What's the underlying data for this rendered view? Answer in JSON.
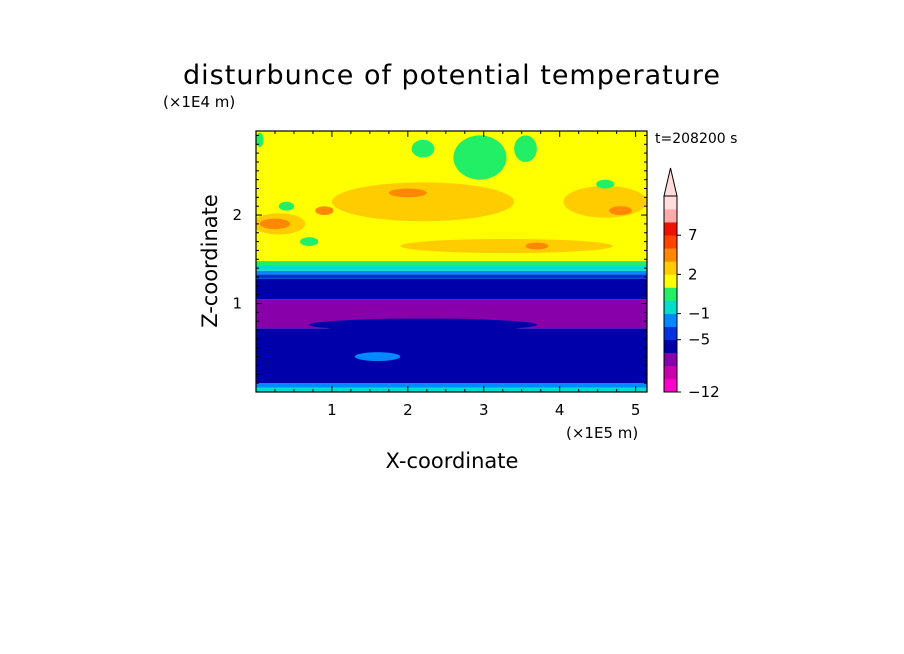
{
  "chart_data": {
    "type": "heatmap",
    "title": "disturbunce of potential temperature",
    "time_label": "t=208200 s",
    "xlabel": "X-coordinate",
    "ylabel": "Z-coordinate",
    "x_unit": "(×1E5 m)",
    "y_unit": "(×1E4 m)",
    "xlim": [
      0,
      5.15
    ],
    "ylim": [
      0,
      2.95
    ],
    "x_ticks": [
      "1",
      "2",
      "3",
      "4",
      "5"
    ],
    "y_ticks": [
      "1",
      "2"
    ],
    "colorbar": {
      "labels": [
        "7",
        "2",
        "−1",
        "−5",
        "−12"
      ],
      "colors": [
        "#ff00cc",
        "#cc00aa",
        "#8800aa",
        "#0000aa",
        "#0033dd",
        "#0088ff",
        "#00ddcc",
        "#22ee66",
        "#ffff00",
        "#ffcc00",
        "#ff8800",
        "#ff4400",
        "#ee1100",
        "#ffaaaa",
        "#ffdddd"
      ],
      "extend": "max"
    },
    "bands": [
      {
        "z0": 0.0,
        "z1": 0.05,
        "color": "#00ddcc"
      },
      {
        "z0": 0.05,
        "z1": 0.1,
        "color": "#0088ff"
      },
      {
        "z0": 0.1,
        "z1": 0.72,
        "color": "#0000aa"
      },
      {
        "z0": 0.72,
        "z1": 1.05,
        "color": "#8800aa"
      },
      {
        "z0": 1.05,
        "z1": 1.28,
        "color": "#0000aa"
      },
      {
        "z0": 1.28,
        "z1": 1.33,
        "color": "#0033dd"
      },
      {
        "z0": 1.33,
        "z1": 1.37,
        "color": "#0088ff"
      },
      {
        "z0": 1.37,
        "z1": 1.43,
        "color": "#00ddcc"
      },
      {
        "z0": 1.43,
        "z1": 1.48,
        "color": "#22ee66"
      },
      {
        "z0": 1.48,
        "z1": 2.95,
        "color": "#ffff00"
      }
    ],
    "patches": [
      {
        "cx": 0.3,
        "cz": 1.9,
        "rx": 0.35,
        "rz": 0.12,
        "color": "#ffcc00"
      },
      {
        "cx": 2.2,
        "cz": 2.15,
        "rx": 1.2,
        "rz": 0.22,
        "color": "#ffcc00"
      },
      {
        "cx": 4.6,
        "cz": 2.15,
        "rx": 0.55,
        "rz": 0.18,
        "color": "#ffcc00"
      },
      {
        "cx": 3.3,
        "cz": 1.65,
        "rx": 1.4,
        "rz": 0.08,
        "color": "#ffcc00"
      },
      {
        "cx": 0.25,
        "cz": 1.9,
        "rx": 0.2,
        "rz": 0.06,
        "color": "#ff8800"
      },
      {
        "cx": 0.9,
        "cz": 2.05,
        "rx": 0.12,
        "rz": 0.05,
        "color": "#ff8800"
      },
      {
        "cx": 2.0,
        "cz": 2.25,
        "rx": 0.25,
        "rz": 0.05,
        "color": "#ff8800"
      },
      {
        "cx": 3.7,
        "cz": 1.65,
        "rx": 0.15,
        "rz": 0.04,
        "color": "#ff8800"
      },
      {
        "cx": 4.8,
        "cz": 2.05,
        "rx": 0.15,
        "rz": 0.05,
        "color": "#ff8800"
      },
      {
        "cx": 0.05,
        "cz": 2.85,
        "rx": 0.05,
        "rz": 0.08,
        "color": "#22ee66"
      },
      {
        "cx": 0.4,
        "cz": 2.1,
        "rx": 0.1,
        "rz": 0.05,
        "color": "#22ee66"
      },
      {
        "cx": 0.7,
        "cz": 1.7,
        "rx": 0.12,
        "rz": 0.05,
        "color": "#22ee66"
      },
      {
        "cx": 2.2,
        "cz": 2.75,
        "rx": 0.15,
        "rz": 0.1,
        "color": "#22ee66"
      },
      {
        "cx": 2.95,
        "cz": 2.65,
        "rx": 0.35,
        "rz": 0.25,
        "color": "#22ee66"
      },
      {
        "cx": 3.55,
        "cz": 2.75,
        "rx": 0.15,
        "rz": 0.15,
        "color": "#22ee66"
      },
      {
        "cx": 4.6,
        "cz": 2.35,
        "rx": 0.12,
        "rz": 0.05,
        "color": "#22ee66"
      },
      {
        "cx": 2.2,
        "cz": 0.76,
        "rx": 1.5,
        "rz": 0.07,
        "color": "#0000aa"
      },
      {
        "cx": 1.6,
        "cz": 0.4,
        "rx": 0.3,
        "rz": 0.05,
        "color": "#0088ff"
      }
    ]
  }
}
